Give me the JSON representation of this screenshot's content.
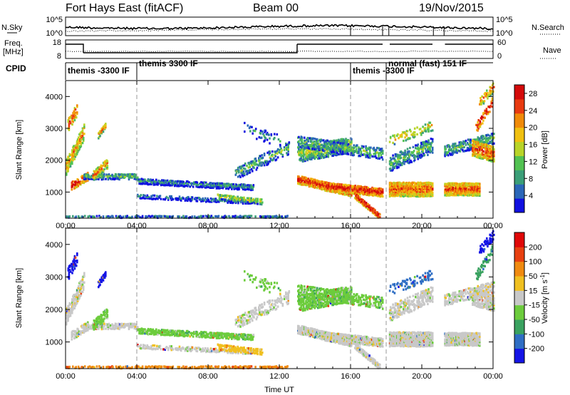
{
  "header": {
    "station": "Fort Hays East (fitACF)",
    "beam": "Beam 00",
    "date": "19/Nov/2015"
  },
  "noise_panel": {
    "left_label": "N.Sky",
    "right_label": "N.Search",
    "left_ticks": [
      "10^5",
      "10^0"
    ],
    "right_ticks": [
      "10^5",
      "10^0"
    ]
  },
  "freq_panel": {
    "left_label_1": "Freq.",
    "left_label_2": "[MHz]",
    "right_label": "Nave",
    "left_ticks": [
      "18",
      "8"
    ],
    "right_ticks": [
      "60",
      "0"
    ]
  },
  "cpid": {
    "label": "CPID",
    "modes": [
      {
        "name": "themis -3300 IF",
        "start_hour": 0.0
      },
      {
        "name": "themis 3300 IF",
        "start_hour": 4.0
      },
      {
        "name": "themis -3300 IF",
        "start_hour": 16.0
      },
      {
        "name": "normal (fast) 151 IF",
        "start_hour": 18.0
      }
    ]
  },
  "chart_data": [
    {
      "type": "heatmap",
      "title": "",
      "xlabel": "Time UT",
      "ylabel": "Slant Range [km]",
      "x_ticks": [
        "00:00",
        "04:00",
        "08:00",
        "12:00",
        "16:00",
        "20:00",
        "00:00"
      ],
      "xlim_hours": [
        0,
        24
      ],
      "ylim": [
        180,
        4500
      ],
      "y_ticks": [
        1000,
        2000,
        3000,
        4000
      ],
      "colorbar": {
        "label": "Power [dB]",
        "ticks": [
          4,
          8,
          12,
          16,
          20,
          24,
          28
        ],
        "range": [
          0,
          30
        ],
        "colors": [
          "#1010e0",
          "#2a66b8",
          "#3a9e78",
          "#52c252",
          "#b8d428",
          "#f0c010",
          "#f08a08",
          "#e83a10",
          "#d40a0a"
        ]
      },
      "vertical_markers_hours": [
        4.0,
        16.0,
        18.0
      ]
    },
    {
      "type": "heatmap",
      "title": "",
      "xlabel": "Time UT",
      "ylabel": "Slant Range [km]",
      "x_ticks": [
        "00:00",
        "04:00",
        "08:00",
        "12:00",
        "16:00",
        "20:00",
        "00:00"
      ],
      "xlim_hours": [
        0,
        24
      ],
      "ylim": [
        180,
        4500
      ],
      "y_ticks": [
        1000,
        2000,
        3000,
        4000
      ],
      "colorbar": {
        "label": "Velocity [m s",
        "label_sup": "-1",
        "label_end": "]",
        "ticks": [
          200,
          100,
          50,
          15,
          -15,
          -50,
          -100,
          -200
        ],
        "colors": [
          "#1414e6",
          "#2f6ec4",
          "#3aa260",
          "#6ccc3c",
          "#c8c8c8",
          "#f0c020",
          "#f08a10",
          "#e84010",
          "#e00808"
        ]
      },
      "vertical_markers_hours": [
        4.0,
        16.0,
        18.0
      ]
    }
  ]
}
